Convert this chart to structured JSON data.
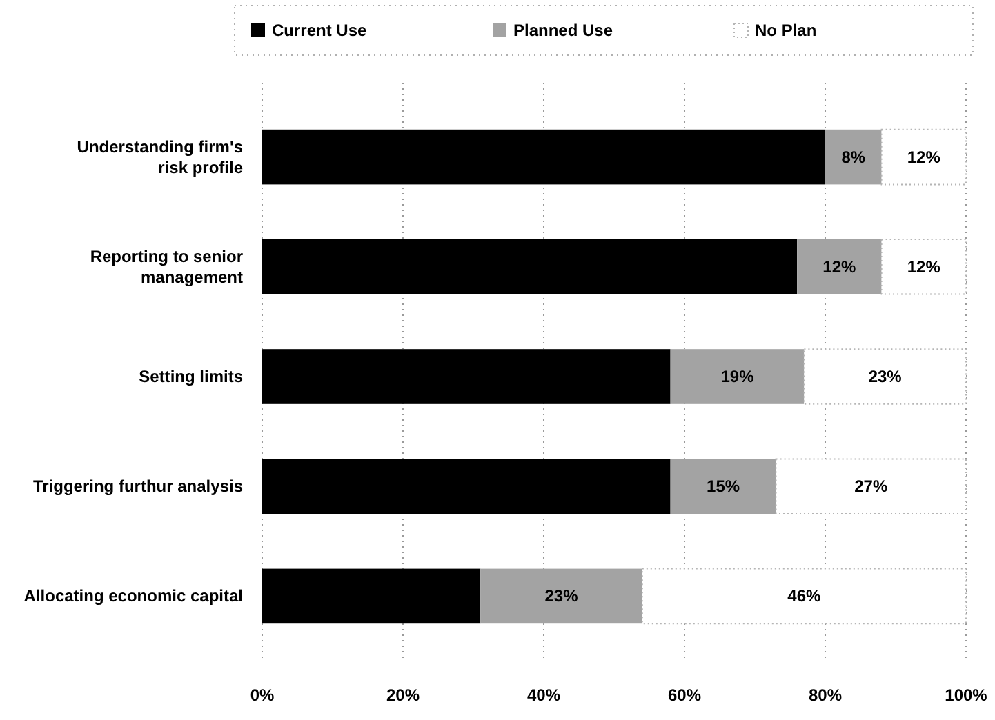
{
  "chart_data": {
    "type": "bar",
    "orientation": "horizontal",
    "stacked": true,
    "categories": [
      "Understanding firm's risk profile",
      "Reporting to senior management",
      "Setting limits",
      "Triggering furthur analysis",
      "Allocating economic capital"
    ],
    "series": [
      {
        "name": "Current Use",
        "color": "#000000",
        "values": [
          80,
          76,
          58,
          58,
          31
        ]
      },
      {
        "name": "Planned Use",
        "color": "#a3a3a3",
        "values": [
          8,
          12,
          19,
          15,
          23
        ],
        "value_labels": [
          "8%",
          "12%",
          "19%",
          "15%",
          "23%"
        ]
      },
      {
        "name": "No Plan",
        "color": "#ffffff",
        "values": [
          12,
          12,
          23,
          27,
          46
        ],
        "value_labels": [
          "12%",
          "12%",
          "23%",
          "27%",
          "46%"
        ]
      }
    ],
    "xlim": [
      0,
      100
    ],
    "xticks": [
      {
        "value": 0,
        "label": "0%"
      },
      {
        "value": 20,
        "label": "20%"
      },
      {
        "value": 40,
        "label": "40%"
      },
      {
        "value": 60,
        "label": "60%"
      },
      {
        "value": 80,
        "label": "80%"
      },
      {
        "value": 100,
        "label": "100%"
      }
    ],
    "grid": "x",
    "legend": "top"
  }
}
